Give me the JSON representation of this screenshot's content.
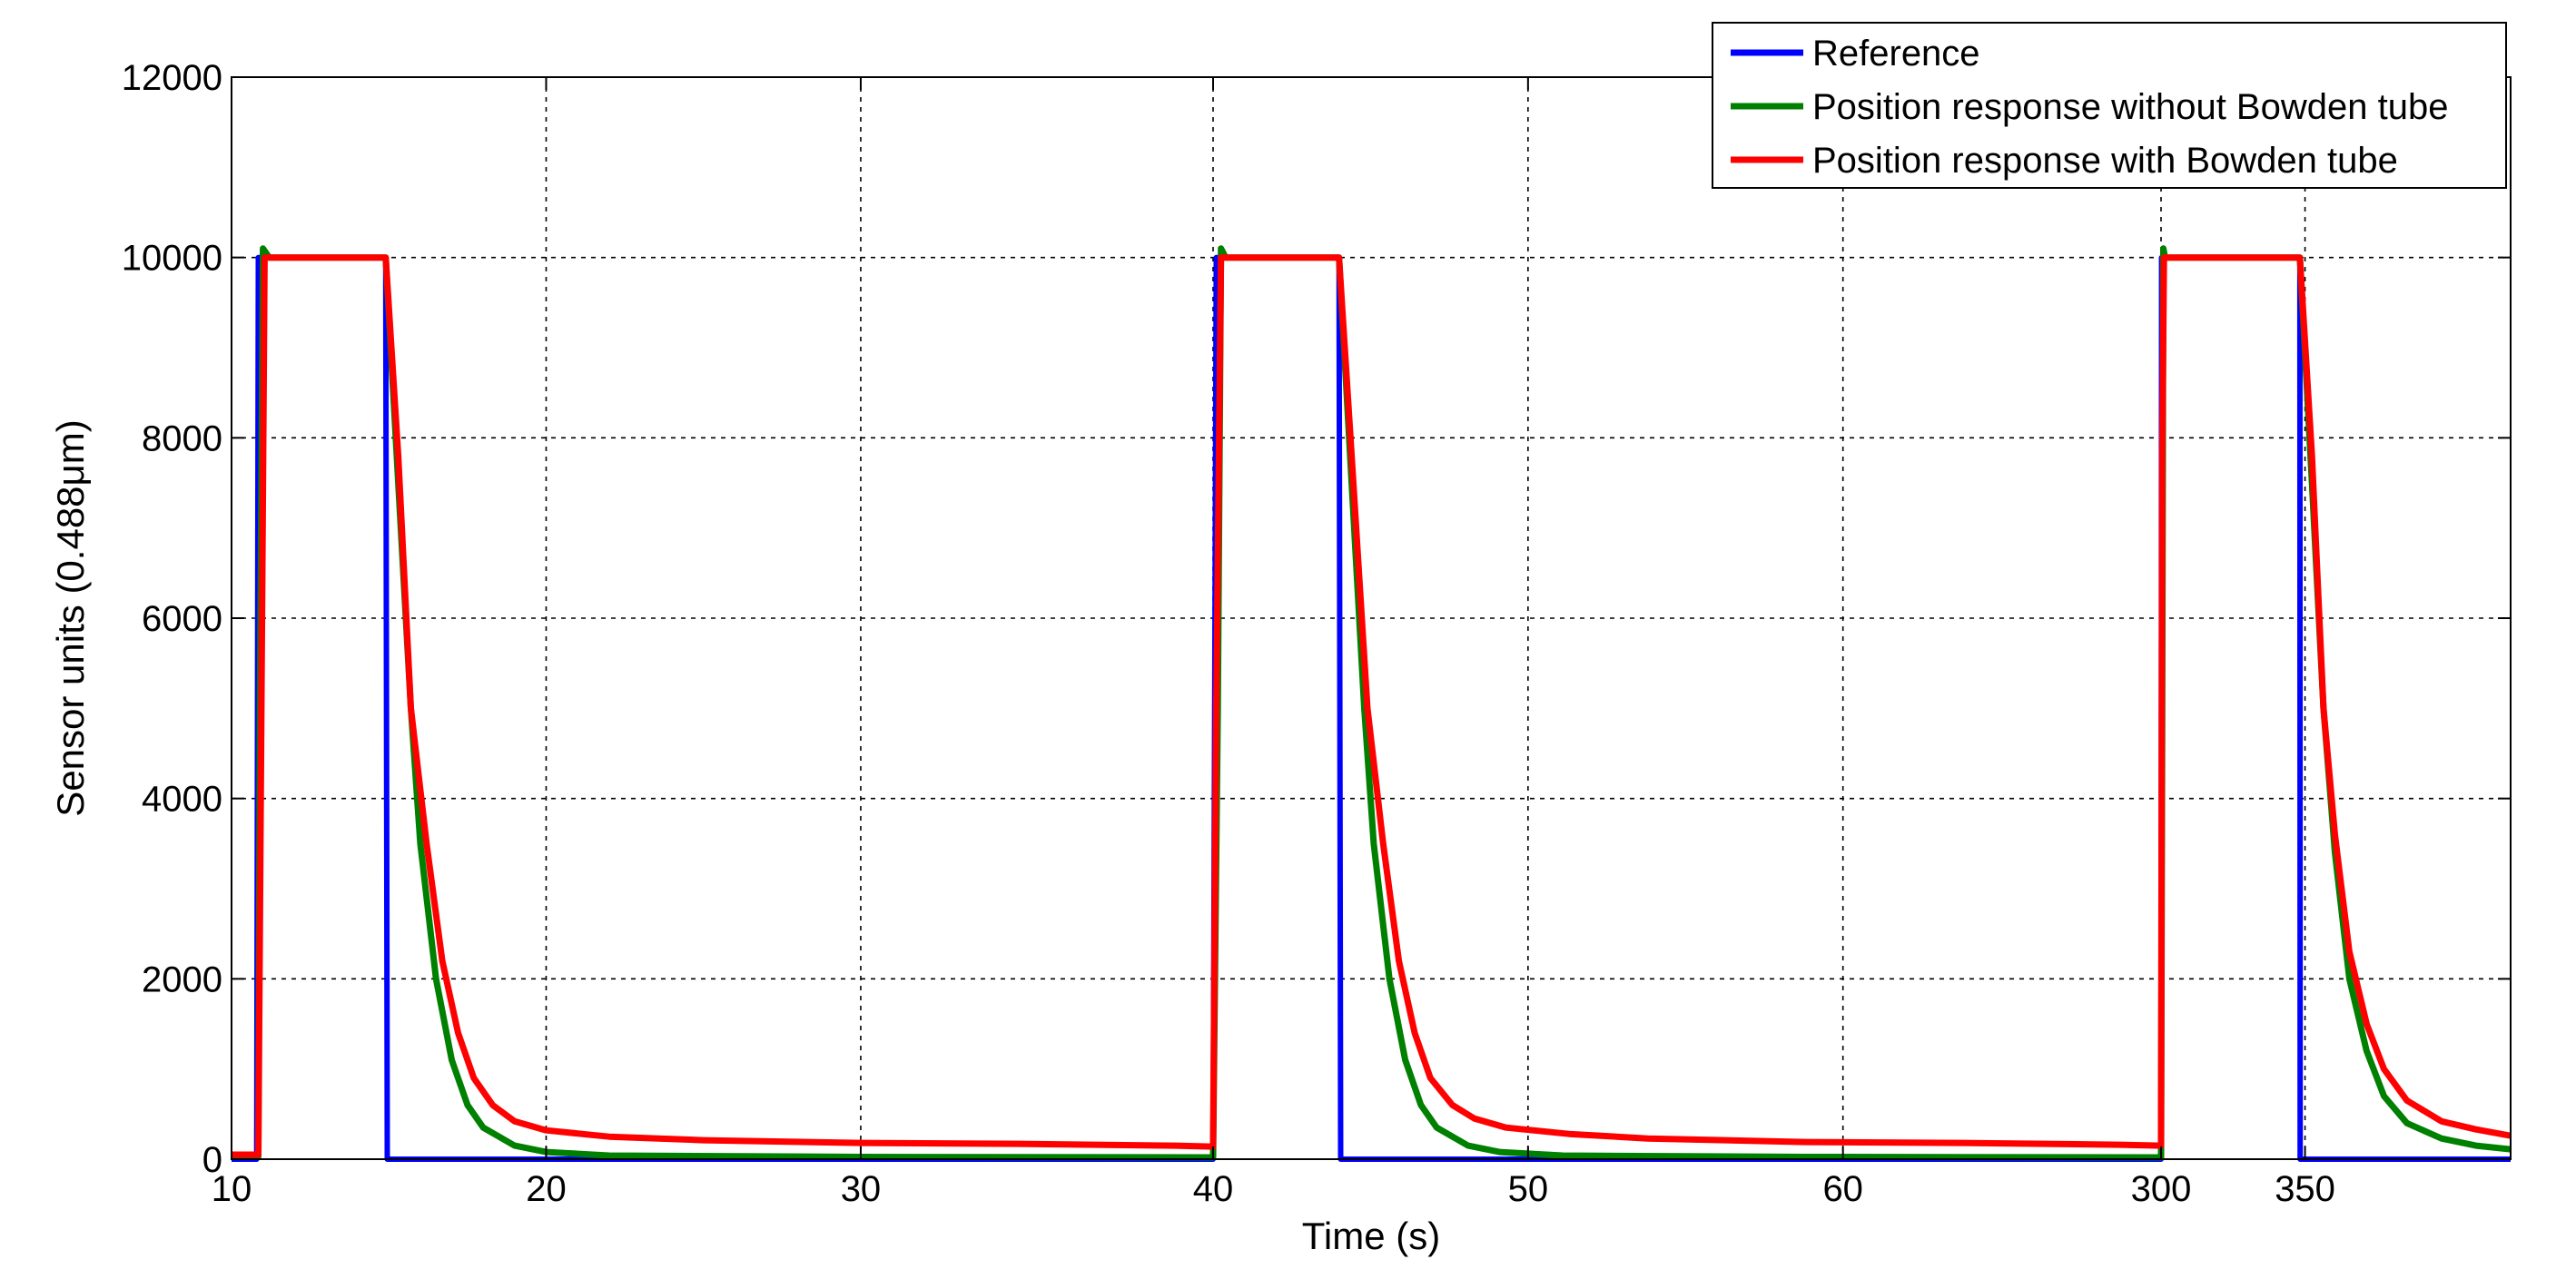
{
  "chart_data": {
    "type": "line",
    "xlabel": "Time (s)",
    "ylabel": "Sensor units (0.488μm)",
    "ylim": [
      0,
      12000
    ],
    "yticks": [
      0,
      2000,
      4000,
      6000,
      8000,
      10000,
      12000
    ],
    "xticks": [
      "10",
      "20",
      "30",
      "40",
      "50",
      "60",
      "300",
      "350"
    ],
    "grid": true,
    "legend_position": "top-right",
    "x_axis_note": "broken time axis: segments 10–41.2 s, 41.2–71.3 s, 301.3–362 s joined end to end",
    "colors": {
      "reference": "#0000ff",
      "without": "#008000",
      "with": "#ff0000"
    },
    "series": [
      {
        "name": "Reference",
        "color": "#0000ff",
        "points": [
          [
            10.0,
            0
          ],
          [
            10.8,
            0
          ],
          [
            10.85,
            10000
          ],
          [
            14.9,
            10000
          ],
          [
            14.95,
            0
          ],
          [
            41.15,
            0
          ],
          [
            41.2,
            0
          ],
          [
            41.3,
            10000
          ],
          [
            45.2,
            10000
          ],
          [
            45.25,
            0
          ],
          [
            71.3,
            0
          ],
          [
            301.3,
            0
          ],
          [
            301.4,
            10000
          ],
          [
            325.4,
            10000
          ],
          [
            325.45,
            0
          ],
          [
            362.0,
            0
          ]
        ]
      },
      {
        "name": "Position response without Bowden tube",
        "color": "#008000",
        "points": [
          [
            10.0,
            30
          ],
          [
            10.85,
            30
          ],
          [
            10.9,
            5000
          ],
          [
            11.0,
            10100
          ],
          [
            11.2,
            10000
          ],
          [
            14.9,
            10000
          ],
          [
            15.3,
            7500
          ],
          [
            15.7,
            5000
          ],
          [
            16.0,
            3500
          ],
          [
            16.5,
            2000
          ],
          [
            17.0,
            1100
          ],
          [
            17.5,
            600
          ],
          [
            18.0,
            350
          ],
          [
            19.0,
            150
          ],
          [
            20.0,
            80
          ],
          [
            22.0,
            40
          ],
          [
            30.0,
            25
          ],
          [
            41.15,
            20
          ],
          [
            41.2,
            20
          ],
          [
            41.35,
            5000
          ],
          [
            41.45,
            10100
          ],
          [
            41.6,
            10000
          ],
          [
            45.2,
            10000
          ],
          [
            45.6,
            7500
          ],
          [
            46.0,
            5000
          ],
          [
            46.3,
            3500
          ],
          [
            46.8,
            2000
          ],
          [
            47.3,
            1100
          ],
          [
            47.8,
            600
          ],
          [
            48.3,
            350
          ],
          [
            49.3,
            150
          ],
          [
            50.3,
            80
          ],
          [
            52.3,
            40
          ],
          [
            60.0,
            25
          ],
          [
            71.3,
            20
          ],
          [
            301.3,
            20
          ],
          [
            301.5,
            5000
          ],
          [
            301.7,
            10100
          ],
          [
            302.0,
            10000
          ],
          [
            325.4,
            10000
          ],
          [
            327.5,
            7500
          ],
          [
            329.5,
            5000
          ],
          [
            331.5,
            3400
          ],
          [
            334.0,
            2000
          ],
          [
            337.0,
            1200
          ],
          [
            340.0,
            700
          ],
          [
            344.0,
            400
          ],
          [
            350.0,
            230
          ],
          [
            356.0,
            150
          ],
          [
            362.0,
            110
          ]
        ]
      },
      {
        "name": "Position response with Bowden tube",
        "color": "#ff0000",
        "points": [
          [
            10.0,
            50
          ],
          [
            10.85,
            50
          ],
          [
            10.95,
            5000
          ],
          [
            11.05,
            10000
          ],
          [
            14.9,
            10000
          ],
          [
            15.3,
            7800
          ],
          [
            15.7,
            5000
          ],
          [
            16.2,
            3500
          ],
          [
            16.7,
            2200
          ],
          [
            17.2,
            1400
          ],
          [
            17.7,
            900
          ],
          [
            18.3,
            600
          ],
          [
            19.0,
            420
          ],
          [
            20.0,
            320
          ],
          [
            22.0,
            250
          ],
          [
            25.0,
            210
          ],
          [
            30.0,
            180
          ],
          [
            35.0,
            170
          ],
          [
            40.0,
            150
          ],
          [
            41.15,
            140
          ],
          [
            41.2,
            140
          ],
          [
            41.3,
            5000
          ],
          [
            41.45,
            10000
          ],
          [
            45.2,
            10000
          ],
          [
            45.6,
            7800
          ],
          [
            46.1,
            5000
          ],
          [
            46.6,
            3500
          ],
          [
            47.1,
            2200
          ],
          [
            47.6,
            1400
          ],
          [
            48.1,
            900
          ],
          [
            48.8,
            600
          ],
          [
            49.5,
            450
          ],
          [
            50.5,
            350
          ],
          [
            52.5,
            280
          ],
          [
            55.0,
            230
          ],
          [
            60.0,
            190
          ],
          [
            65.0,
            180
          ],
          [
            70.0,
            160
          ],
          [
            71.3,
            150
          ],
          [
            301.3,
            150
          ],
          [
            301.5,
            7800
          ],
          [
            301.8,
            10000
          ],
          [
            325.4,
            10000
          ],
          [
            327.5,
            7800
          ],
          [
            329.5,
            5000
          ],
          [
            331.5,
            3600
          ],
          [
            334.0,
            2300
          ],
          [
            337.0,
            1500
          ],
          [
            340.0,
            1000
          ],
          [
            344.0,
            650
          ],
          [
            350.0,
            420
          ],
          [
            356.0,
            330
          ],
          [
            362.0,
            260
          ]
        ]
      }
    ]
  }
}
